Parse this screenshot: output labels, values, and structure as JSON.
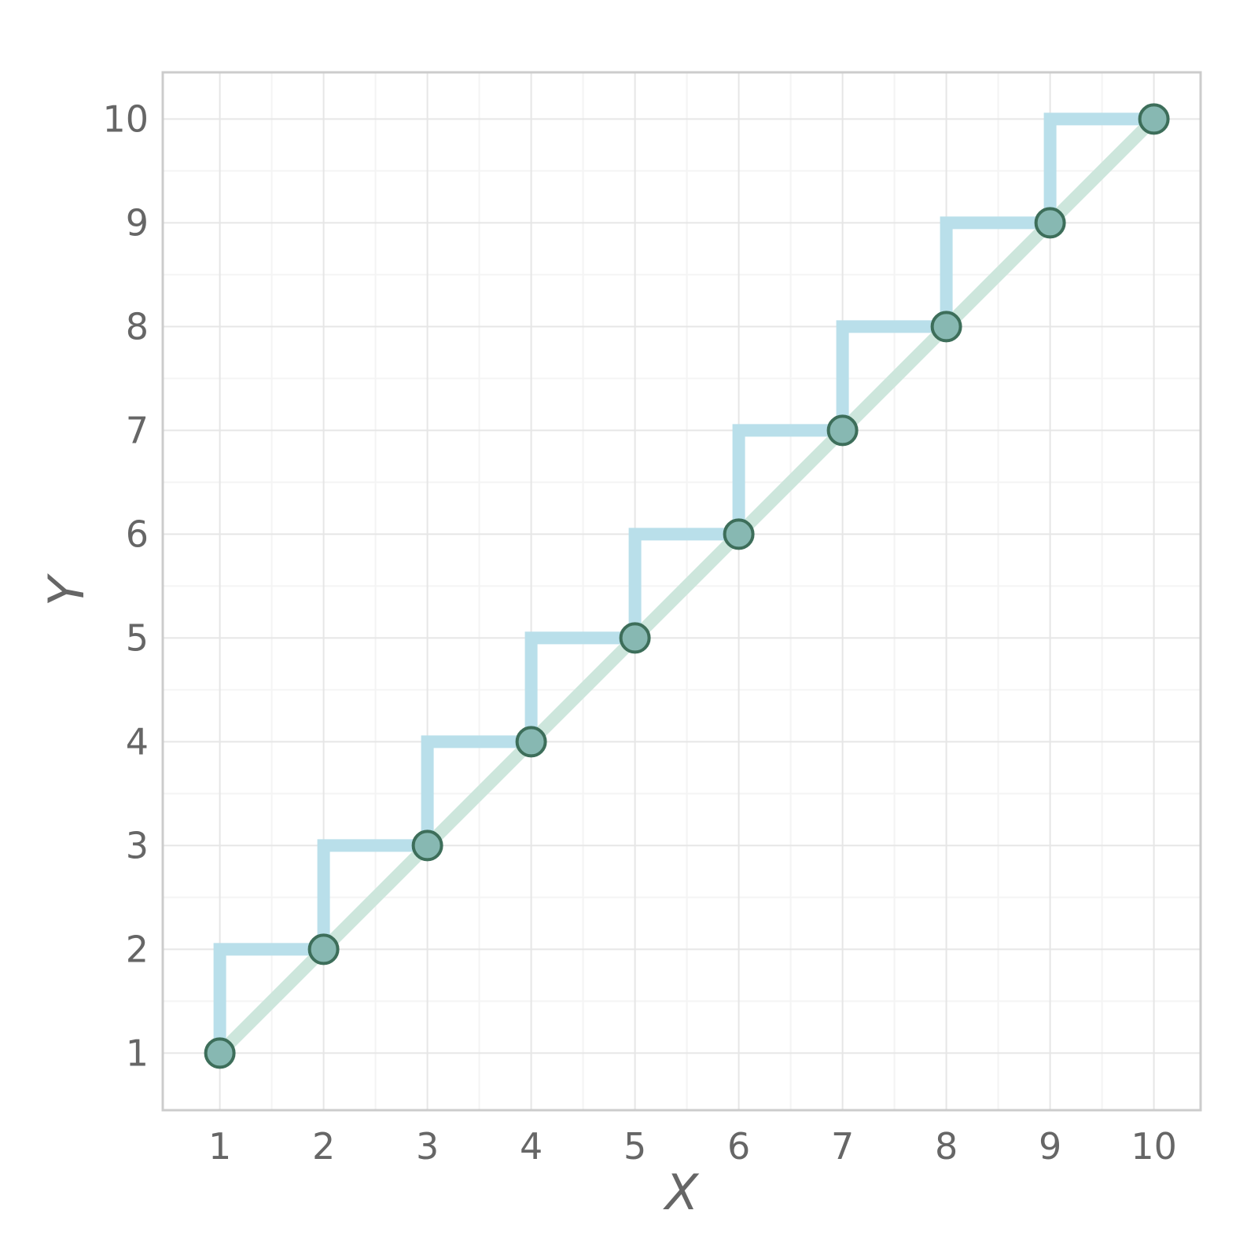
{
  "chart_data": {
    "type": "line",
    "xlabel": "X",
    "ylabel": "Y",
    "xlim": [
      0.45,
      10.45
    ],
    "ylim": [
      0.45,
      10.45
    ],
    "xticks": [
      1,
      2,
      3,
      4,
      5,
      6,
      7,
      8,
      9,
      10
    ],
    "yticks": [
      1,
      2,
      3,
      4,
      5,
      6,
      7,
      8,
      9,
      10
    ],
    "xtick_labels": [
      "1",
      "2",
      "3",
      "4",
      "5",
      "6",
      "7",
      "8",
      "9",
      "10"
    ],
    "ytick_labels": [
      "1",
      "2",
      "3",
      "4",
      "5",
      "6",
      "7",
      "8",
      "9",
      "10"
    ],
    "grid": true,
    "minor_grid": true,
    "series": [
      {
        "style": "line-with-markers",
        "x": [
          1,
          2,
          3,
          4,
          5,
          6,
          7,
          8,
          9,
          10
        ],
        "y": [
          1,
          2,
          3,
          4,
          5,
          6,
          7,
          8,
          9,
          10
        ],
        "line_color": "#cde6dc",
        "marker_fill": "#87b8b2",
        "marker_edge": "#3d6e5a"
      },
      {
        "style": "step-post",
        "x": [
          1,
          2,
          3,
          4,
          5,
          6,
          7,
          8,
          9,
          10
        ],
        "y": [
          1,
          2,
          3,
          4,
          5,
          6,
          7,
          8,
          9,
          10
        ],
        "line_color": "#b9dfea"
      }
    ],
    "colors": {
      "grid_major": "#e6e6e6",
      "grid_minor": "#f4f4f4",
      "frame": "#cccccc",
      "text": "#666666"
    }
  }
}
